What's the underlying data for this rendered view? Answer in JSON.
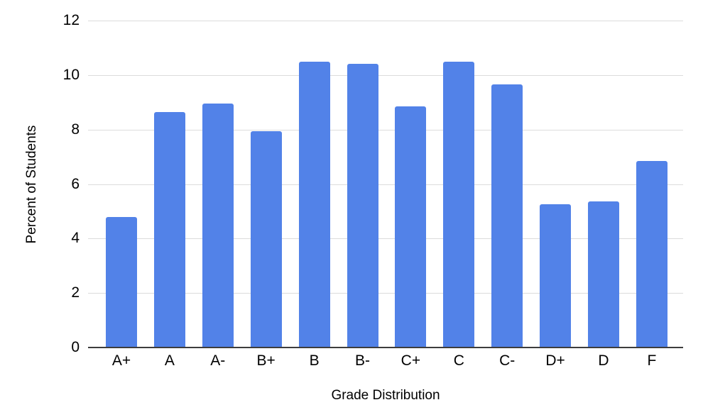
{
  "chart_data": {
    "type": "bar",
    "title": "",
    "xlabel": "Grade Distribution",
    "ylabel": "Percent of Students",
    "categories": [
      "A+",
      "A",
      "A-",
      "B+",
      "B",
      "B-",
      "C+",
      "C",
      "C-",
      "D+",
      "D",
      "F"
    ],
    "values": [
      4.8,
      8.65,
      8.95,
      7.95,
      10.5,
      10.4,
      8.85,
      10.5,
      9.65,
      5.25,
      5.35,
      6.85
    ],
    "ylim": [
      0,
      12
    ],
    "yticks": [
      0,
      2,
      4,
      6,
      8,
      10,
      12
    ],
    "grid": true,
    "legend": "none",
    "colors": {
      "bar": "#5282e8",
      "gridline": "#dcdcdc",
      "axis_line": "#3d3d3d",
      "text": "#000000",
      "background": "#ffffff"
    }
  }
}
